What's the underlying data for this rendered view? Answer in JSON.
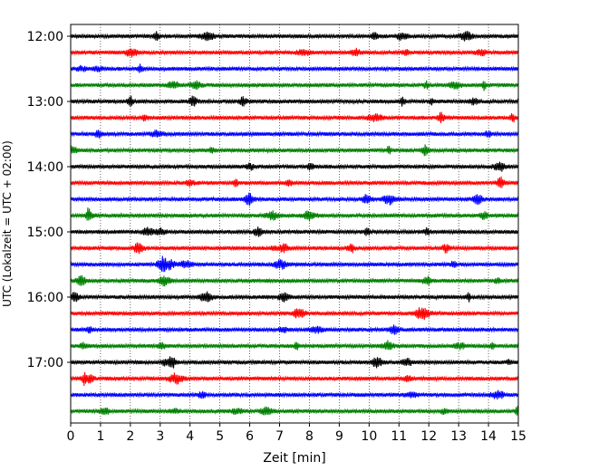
{
  "chart_data": {
    "type": "line",
    "subtype": "helicorder",
    "title": "",
    "xlabel": "Zeit  [min]",
    "ylabel": "UTC (Lokalzeit = UTC + 02:00)",
    "xlim": [
      0,
      15
    ],
    "x_ticks": [
      "0",
      "1",
      "2",
      "3",
      "4",
      "5",
      "6",
      "7",
      "8",
      "9",
      "10",
      "11",
      "12",
      "13",
      "14",
      "15"
    ],
    "y_ticks": [
      "12:00",
      "13:00",
      "14:00",
      "15:00",
      "16:00",
      "17:00"
    ],
    "vertical_grid": true,
    "grid_style": "dotted",
    "minutes_per_line": 15,
    "traces": [
      {
        "label": "12:00",
        "color": "#000000"
      },
      {
        "label": "12:15",
        "color": "#ff0000"
      },
      {
        "label": "12:30",
        "color": "#0000ff"
      },
      {
        "label": "12:45",
        "color": "#008000"
      },
      {
        "label": "13:00",
        "color": "#000000"
      },
      {
        "label": "13:15",
        "color": "#ff0000"
      },
      {
        "label": "13:30",
        "color": "#0000ff"
      },
      {
        "label": "13:45",
        "color": "#008000"
      },
      {
        "label": "14:00",
        "color": "#000000"
      },
      {
        "label": "14:15",
        "color": "#ff0000"
      },
      {
        "label": "14:30",
        "color": "#0000ff"
      },
      {
        "label": "14:45",
        "color": "#008000"
      },
      {
        "label": "15:00",
        "color": "#000000"
      },
      {
        "label": "15:15",
        "color": "#ff0000"
      },
      {
        "label": "15:30",
        "color": "#0000ff"
      },
      {
        "label": "15:45",
        "color": "#008000"
      },
      {
        "label": "16:00",
        "color": "#000000"
      },
      {
        "label": "16:15",
        "color": "#ff0000"
      },
      {
        "label": "16:30",
        "color": "#0000ff"
      },
      {
        "label": "16:45",
        "color": "#008000"
      },
      {
        "label": "17:00",
        "color": "#000000"
      },
      {
        "label": "17:15",
        "color": "#ff0000"
      },
      {
        "label": "17:30",
        "color": "#0000ff"
      },
      {
        "label": "17:45",
        "color": "#008000"
      }
    ]
  }
}
